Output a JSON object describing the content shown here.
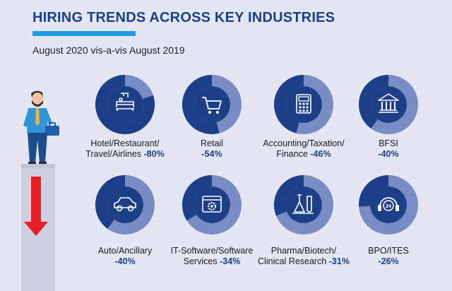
{
  "title": "HIRING TRENDS ACROSS KEY INDUSTRIES",
  "subtitle": "August 2020 vis-a-vis August 2019",
  "colors": {
    "title": "#1d3f87",
    "accent_bar": "#1e9be9",
    "donut_dark": "#1d3f87",
    "donut_light": "#7a8cc4",
    "arrow": "#e81e25",
    "background": "#e4e6f3"
  },
  "chart_data": {
    "type": "pie",
    "title": "HIRING TRENDS ACROSS KEY INDUSTRIES",
    "subtitle": "August 2020 vis-a-vis August 2019",
    "categories": [
      "Hotel/Restaurant/Travel/Airlines",
      "Retail",
      "Accounting/Taxation/Finance",
      "BFSI",
      "Auto/Ancillary",
      "IT-Software/Software Services",
      "Pharma/Biotech/Clinical Research",
      "BPO/ITES"
    ],
    "values": [
      -80,
      -54,
      -46,
      -40,
      -40,
      -34,
      -31,
      -26
    ],
    "items": [
      {
        "line1": "Hotel/Restaurant/",
        "line2": "Travel/Airlines",
        "pct": "-80%",
        "value": -80,
        "icon": "hotel-bed-icon"
      },
      {
        "line1": "Retail",
        "line2": "",
        "pct": "-54%",
        "value": -54,
        "icon": "shopping-cart-icon"
      },
      {
        "line1": "Accounting/Taxation/",
        "line2": "Finance",
        "pct": "-46%",
        "value": -46,
        "icon": "calculator-icon"
      },
      {
        "line1": "BFSI",
        "line2": "",
        "pct": "-40%",
        "value": -40,
        "icon": "bank-icon"
      },
      {
        "line1": "Auto/Ancillary",
        "line2": "",
        "pct": "-40%",
        "value": -40,
        "icon": "car-icon"
      },
      {
        "line1": "IT-Software/Software",
        "line2": "Services",
        "pct": "-34%",
        "value": -34,
        "icon": "software-gear-icon"
      },
      {
        "line1": "Pharma/Biotech/",
        "line2": "Clinical Research",
        "pct": "-31%",
        "value": -31,
        "icon": "lab-flask-icon"
      },
      {
        "line1": "BPO/ITES",
        "line2": "",
        "pct": "-26%",
        "value": -26,
        "icon": "headset-24-icon"
      }
    ]
  }
}
